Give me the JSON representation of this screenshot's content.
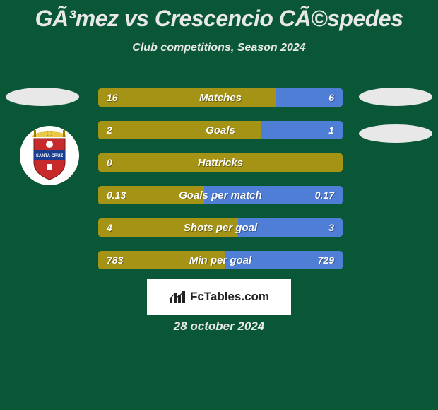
{
  "page": {
    "background_color": "#0a5737",
    "text_color": "#e8e8e8"
  },
  "title": "GÃ³mez vs Crescencio CÃ©spedes",
  "subtitle": "Club competitions, Season 2024",
  "left_color": "#a59315",
  "right_color": "#4f7ed6",
  "stats": [
    {
      "label": "Matches",
      "left_val": "16",
      "right_val": "6",
      "left_pct": 72.7
    },
    {
      "label": "Goals",
      "left_val": "2",
      "right_val": "1",
      "left_pct": 66.7
    },
    {
      "label": "Hattricks",
      "left_val": "0",
      "right_val": "0",
      "left_pct": 100
    },
    {
      "label": "Goals per match",
      "left_val": "0.13",
      "right_val": "0.17",
      "left_pct": 43.3
    },
    {
      "label": "Shots per goal",
      "left_val": "4",
      "right_val": "3",
      "left_pct": 57.1
    },
    {
      "label": "Min per goal",
      "left_val": "783",
      "right_val": "729",
      "left_pct": 51.8
    }
  ],
  "crest": {
    "top_color": "#e9c94a",
    "shield_main": "#c72a2a",
    "shield_stripe": "#1a3d8f",
    "banner_text": "SANTA CRUZ"
  },
  "logo_text": "FcTables.com",
  "date": "28 october 2024"
}
